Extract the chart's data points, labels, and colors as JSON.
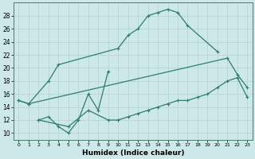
{
  "xlabel": "Humidex (Indice chaleur)",
  "bg_color": "#cce8e8",
  "grid_color": "#b8d4d4",
  "line_color": "#2e7d6e",
  "xlim": [
    -0.5,
    23.5
  ],
  "ylim": [
    9,
    30
  ],
  "xticks": [
    0,
    1,
    2,
    3,
    4,
    5,
    6,
    7,
    8,
    9,
    10,
    11,
    12,
    13,
    14,
    15,
    16,
    17,
    18,
    19,
    20,
    21,
    22,
    23
  ],
  "yticks": [
    10,
    12,
    14,
    16,
    18,
    20,
    22,
    24,
    26,
    28
  ],
  "series": [
    {
      "x": [
        0,
        1,
        3,
        4,
        10,
        11,
        12,
        13,
        14,
        15,
        16,
        17,
        20
      ],
      "y": [
        15,
        14.5,
        18,
        20.5,
        23,
        25,
        26,
        28,
        28.5,
        29,
        28.5,
        26.5,
        22.5
      ]
    },
    {
      "x": [
        0,
        1,
        21,
        22,
        23
      ],
      "y": [
        15,
        14.5,
        21.5,
        19,
        17
      ]
    },
    {
      "x": [
        2,
        5,
        7,
        9,
        10,
        11,
        12,
        13,
        14,
        15,
        16,
        17,
        18,
        19,
        20,
        21,
        22,
        23
      ],
      "y": [
        12,
        11,
        13.5,
        12,
        12,
        12.5,
        13,
        13.5,
        14,
        14.5,
        15,
        15,
        15.5,
        16,
        17,
        18,
        18.5,
        15.5
      ]
    },
    {
      "x": [
        2,
        3,
        4,
        5,
        6,
        7,
        8,
        9
      ],
      "y": [
        12,
        12.5,
        11,
        10,
        12,
        16,
        13.5,
        19.5
      ]
    }
  ]
}
